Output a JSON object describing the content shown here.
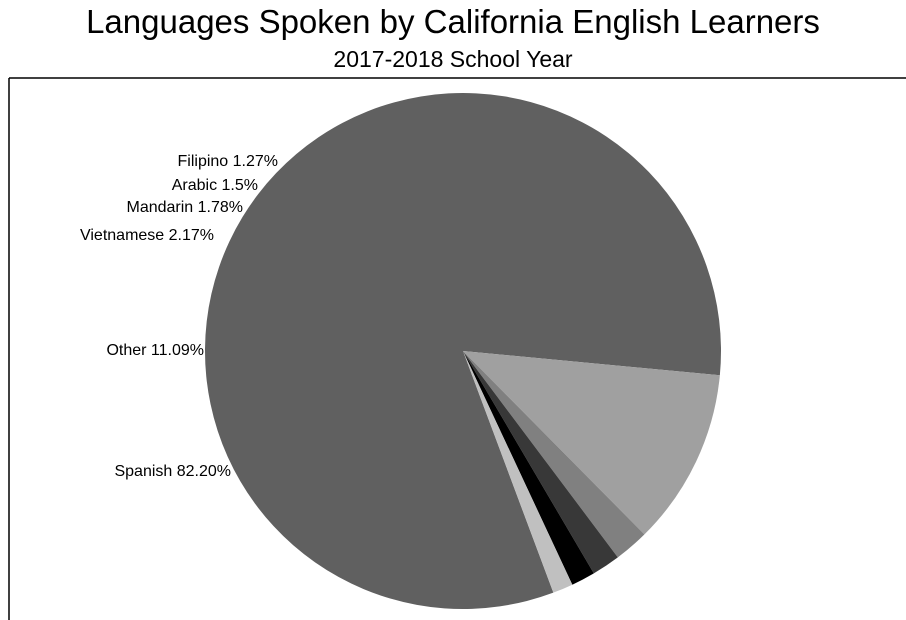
{
  "chart_data": {
    "type": "pie",
    "title": "Languages Spoken by California English Learners",
    "subtitle": "2017-2018 School Year",
    "slices": [
      {
        "label": "Spanish 82.20%",
        "name": "Spanish",
        "value": 82.2,
        "color": "#606060"
      },
      {
        "label": "Other 11.09%",
        "name": "Other",
        "value": 11.09,
        "color": "#a0a0a0"
      },
      {
        "label": "Vietnamese 2.17%",
        "name": "Vietnamese",
        "value": 2.17,
        "color": "#808080"
      },
      {
        "label": "Mandarin 1.78%",
        "name": "Mandarin",
        "value": 1.78,
        "color": "#383838"
      },
      {
        "label": "Arabic 1.5%",
        "name": "Arabic",
        "value": 1.5,
        "color": "#000000"
      },
      {
        "label": "Filipino 1.27%",
        "name": "Filipino",
        "value": 1.27,
        "color": "#c0c0c0"
      }
    ],
    "legend": "none"
  }
}
